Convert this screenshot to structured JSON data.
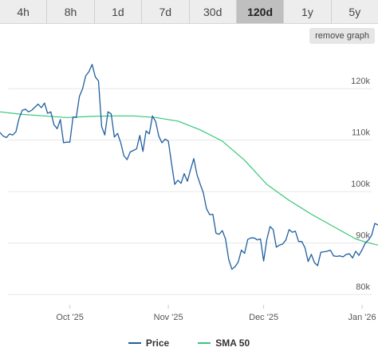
{
  "tabs": [
    {
      "label": "4h",
      "active": false
    },
    {
      "label": "8h",
      "active": false
    },
    {
      "label": "1d",
      "active": false
    },
    {
      "label": "7d",
      "active": false
    },
    {
      "label": "30d",
      "active": false
    },
    {
      "label": "120d",
      "active": true
    },
    {
      "label": "1y",
      "active": false
    },
    {
      "label": "5y",
      "active": false
    }
  ],
  "remove_graph_label": "remove graph",
  "colors": {
    "price": "#1f5f9f",
    "sma": "#37c776",
    "grid": "#e6e6e6",
    "axis_text": "#555555"
  },
  "chart_data": {
    "type": "line",
    "x_axis_type": "date",
    "xlim": [
      "2025-09-09",
      "2026-01-06"
    ],
    "ylim": [
      78000,
      127000
    ],
    "y_ticks": [
      80000,
      90000,
      100000,
      110000,
      120000
    ],
    "y_tick_labels": [
      "80k",
      "90k",
      "100k",
      "110k",
      "120k"
    ],
    "x_ticks": [
      "2025-10-01",
      "2025-11-01",
      "2025-12-01",
      "2026-01-01"
    ],
    "x_tick_labels": [
      "Oct '25",
      "Nov '25",
      "Dec '25",
      "Jan '26"
    ],
    "grid": true,
    "legend_position": "bottom",
    "series": [
      {
        "name": "Price",
        "color": "#1f5f9f",
        "points": [
          [
            "2025-09-09",
            111500
          ],
          [
            "2025-09-10",
            110800
          ],
          [
            "2025-09-11",
            110500
          ],
          [
            "2025-09-12",
            111200
          ],
          [
            "2025-09-13",
            111000
          ],
          [
            "2025-09-14",
            111600
          ],
          [
            "2025-09-15",
            114200
          ],
          [
            "2025-09-16",
            115800
          ],
          [
            "2025-09-17",
            116000
          ],
          [
            "2025-09-18",
            115500
          ],
          [
            "2025-09-19",
            115800
          ],
          [
            "2025-09-20",
            116400
          ],
          [
            "2025-09-21",
            117000
          ],
          [
            "2025-09-22",
            116300
          ],
          [
            "2025-09-23",
            117200
          ],
          [
            "2025-09-24",
            115200
          ],
          [
            "2025-09-25",
            115500
          ],
          [
            "2025-09-26",
            113000
          ],
          [
            "2025-09-27",
            112200
          ],
          [
            "2025-09-28",
            114000
          ],
          [
            "2025-09-29",
            109500
          ],
          [
            "2025-09-30",
            109600
          ],
          [
            "2025-10-01",
            109600
          ],
          [
            "2025-10-02",
            114500
          ],
          [
            "2025-10-03",
            114400
          ],
          [
            "2025-10-04",
            118500
          ],
          [
            "2025-10-05",
            120000
          ],
          [
            "2025-10-06",
            122500
          ],
          [
            "2025-10-07",
            123300
          ],
          [
            "2025-10-08",
            124700
          ],
          [
            "2025-10-09",
            122300
          ],
          [
            "2025-10-10",
            121500
          ],
          [
            "2025-10-11",
            112600
          ],
          [
            "2025-10-12",
            111000
          ],
          [
            "2025-10-13",
            115500
          ],
          [
            "2025-10-14",
            115100
          ],
          [
            "2025-10-15",
            110600
          ],
          [
            "2025-10-16",
            111300
          ],
          [
            "2025-10-17",
            109500
          ],
          [
            "2025-10-18",
            107000
          ],
          [
            "2025-10-19",
            106200
          ],
          [
            "2025-10-20",
            107700
          ],
          [
            "2025-10-21",
            108000
          ],
          [
            "2025-10-22",
            108300
          ],
          [
            "2025-10-23",
            110900
          ],
          [
            "2025-10-24",
            107800
          ],
          [
            "2025-10-25",
            111800
          ],
          [
            "2025-10-26",
            111200
          ],
          [
            "2025-10-27",
            114700
          ],
          [
            "2025-10-28",
            113600
          ],
          [
            "2025-10-29",
            110700
          ],
          [
            "2025-10-30",
            109500
          ],
          [
            "2025-10-31",
            110200
          ],
          [
            "2025-11-01",
            109800
          ],
          [
            "2025-11-02",
            105500
          ],
          [
            "2025-11-03",
            101400
          ],
          [
            "2025-11-04",
            102200
          ],
          [
            "2025-11-05",
            101600
          ],
          [
            "2025-11-06",
            103500
          ],
          [
            "2025-11-07",
            102000
          ],
          [
            "2025-11-08",
            104300
          ],
          [
            "2025-11-09",
            106400
          ],
          [
            "2025-11-10",
            103300
          ],
          [
            "2025-11-11",
            101500
          ],
          [
            "2025-11-12",
            99800
          ],
          [
            "2025-11-13",
            96700
          ],
          [
            "2025-11-14",
            95500
          ],
          [
            "2025-11-15",
            95600
          ],
          [
            "2025-11-16",
            91900
          ],
          [
            "2025-11-17",
            91700
          ],
          [
            "2025-11-18",
            92400
          ],
          [
            "2025-11-19",
            90800
          ],
          [
            "2025-11-20",
            86800
          ],
          [
            "2025-11-21",
            84900
          ],
          [
            "2025-11-22",
            85400
          ],
          [
            "2025-11-23",
            86300
          ],
          [
            "2025-11-24",
            88600
          ],
          [
            "2025-11-25",
            88000
          ],
          [
            "2025-11-26",
            90700
          ],
          [
            "2025-11-27",
            91000
          ],
          [
            "2025-11-28",
            91000
          ],
          [
            "2025-11-29",
            90600
          ],
          [
            "2025-11-30",
            90800
          ],
          [
            "2025-12-01",
            86500
          ],
          [
            "2025-12-02",
            90700
          ],
          [
            "2025-12-03",
            93200
          ],
          [
            "2025-12-04",
            92600
          ],
          [
            "2025-12-05",
            89200
          ],
          [
            "2025-12-06",
            89600
          ],
          [
            "2025-12-07",
            89800
          ],
          [
            "2025-12-08",
            90600
          ],
          [
            "2025-12-09",
            92600
          ],
          [
            "2025-12-10",
            92100
          ],
          [
            "2025-12-11",
            92300
          ],
          [
            "2025-12-12",
            90300
          ],
          [
            "2025-12-13",
            90300
          ],
          [
            "2025-12-14",
            89100
          ],
          [
            "2025-12-15",
            86400
          ],
          [
            "2025-12-16",
            87800
          ],
          [
            "2025-12-17",
            86200
          ],
          [
            "2025-12-18",
            85600
          ],
          [
            "2025-12-19",
            88200
          ],
          [
            "2025-12-20",
            88300
          ],
          [
            "2025-12-21",
            88400
          ],
          [
            "2025-12-22",
            88600
          ],
          [
            "2025-12-23",
            87500
          ],
          [
            "2025-12-24",
            87400
          ],
          [
            "2025-12-25",
            87500
          ],
          [
            "2025-12-26",
            87300
          ],
          [
            "2025-12-27",
            87800
          ],
          [
            "2025-12-28",
            87900
          ],
          [
            "2025-12-29",
            87100
          ],
          [
            "2025-12-30",
            88400
          ],
          [
            "2025-12-31",
            87600
          ],
          [
            "2026-01-01",
            88700
          ],
          [
            "2026-01-02",
            90000
          ],
          [
            "2026-01-03",
            90600
          ],
          [
            "2026-01-04",
            91500
          ],
          [
            "2026-01-05",
            93800
          ],
          [
            "2026-01-06",
            93500
          ]
        ]
      },
      {
        "name": "SMA 50",
        "color": "#37c776",
        "points": [
          [
            "2025-09-09",
            115500
          ],
          [
            "2025-09-16",
            115000
          ],
          [
            "2025-09-23",
            114700
          ],
          [
            "2025-09-30",
            114400
          ],
          [
            "2025-10-07",
            114600
          ],
          [
            "2025-10-14",
            114700
          ],
          [
            "2025-10-21",
            114700
          ],
          [
            "2025-10-28",
            114400
          ],
          [
            "2025-11-04",
            113700
          ],
          [
            "2025-11-11",
            112000
          ],
          [
            "2025-11-18",
            109800
          ],
          [
            "2025-11-25",
            106100
          ],
          [
            "2025-12-02",
            101400
          ],
          [
            "2025-12-09",
            98300
          ],
          [
            "2025-12-16",
            95600
          ],
          [
            "2025-12-23",
            93200
          ],
          [
            "2025-12-30",
            90800
          ],
          [
            "2026-01-02",
            90200
          ],
          [
            "2026-01-06",
            89600
          ]
        ]
      }
    ]
  }
}
